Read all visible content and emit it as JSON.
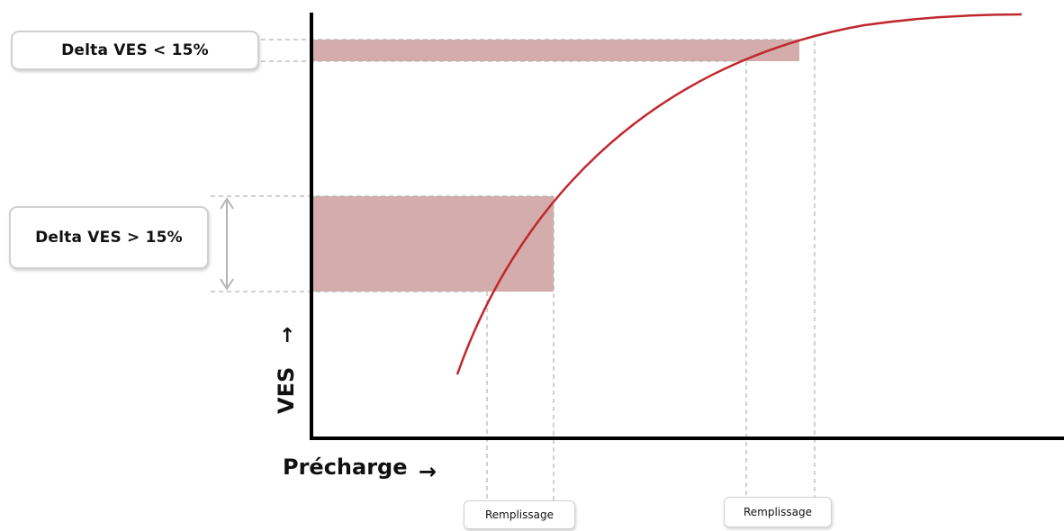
{
  "labels": {
    "delta_low": "Delta VES < 15%",
    "delta_high": "Delta VES > 15%",
    "remplissage_left": "Remplissage",
    "remplissage_right": "Remplissage",
    "x_axis": "Précharge",
    "y_axis": "VES",
    "arrow": "→"
  },
  "colors": {
    "curve": "#c0282d",
    "band": "#c4908f",
    "axis": "#000000",
    "guide": "#b5b5b5",
    "box_border": "#d0d0d0"
  },
  "icons": {
    "x_axis_arrow": "right-arrow-icon",
    "y_axis_arrow": "up-arrow-icon",
    "double_arrow": "vertical-double-arrow-icon"
  }
}
